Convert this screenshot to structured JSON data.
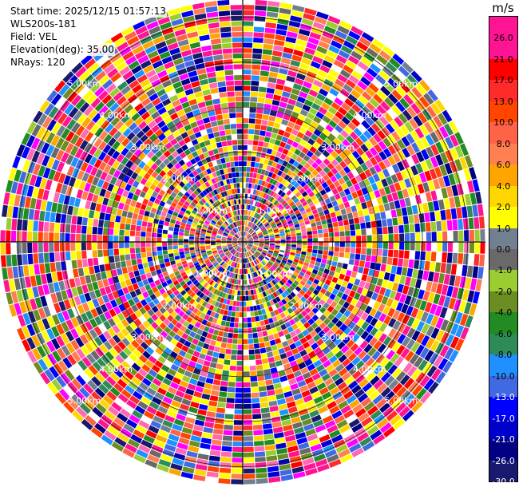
{
  "header": {
    "start_time": "Start time: 2025/12/15 01:57:13",
    "instrument": "WLS200s-181",
    "field": "Field: VEL",
    "elevation": "Elevation(deg): 35.00",
    "nrays": "NRays: 120"
  },
  "chart_data": {
    "type": "heatmap",
    "projection": "polar",
    "field": "VEL",
    "rays": 120,
    "range_rings_km": [
      "1.00km",
      "2.00km",
      "3.00km",
      "4.00km",
      "5.00km"
    ],
    "max_range_km": 5.4,
    "gate_count": 45,
    "colorbar": {
      "unit": "m/s",
      "labels": [
        "26.0",
        "21.0",
        "17.0",
        "13.0",
        "10.0",
        "8.0",
        "6.0",
        "4.0",
        "2.0",
        "1.0",
        "0.0",
        "-1.0",
        "-2.0",
        "-4.0",
        "-6.0",
        "-8.0",
        "-10.0",
        "-13.0",
        "-17.0",
        "-21.0",
        "-26.0",
        "-30.0"
      ],
      "colors": [
        "#ff1493",
        "#ff1493",
        "#ff0000",
        "#ff2a2a",
        "#ff4500",
        "#ff6347",
        "#ff7f50",
        "#ffa500",
        "#ffd700",
        "#ffff00",
        "#708090",
        "#696969",
        "#9acd32",
        "#6b8e23",
        "#228b22",
        "#2e8b57",
        "#1e90ff",
        "#4169e1",
        "#0000ff",
        "#0000cd",
        "#000080",
        "#191970"
      ]
    }
  }
}
